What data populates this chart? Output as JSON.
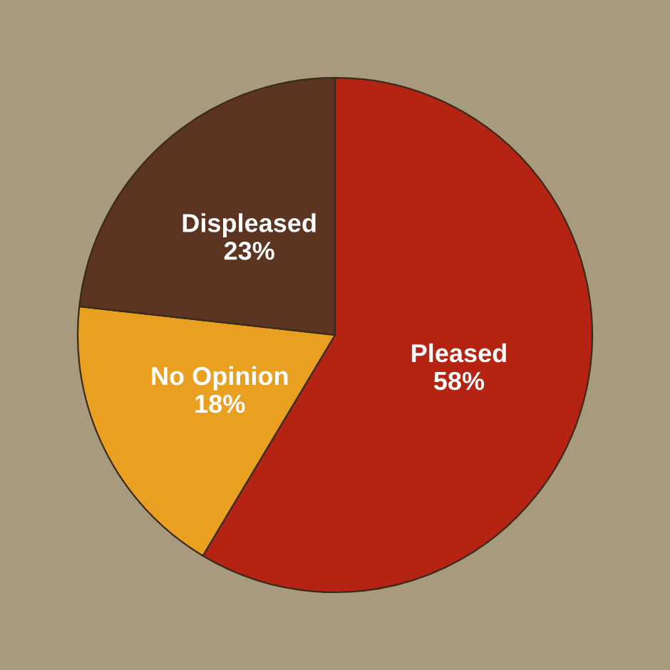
{
  "chart_data": {
    "type": "pie",
    "categories": [
      "Pleased",
      "No Opinion",
      "Displeased"
    ],
    "values": [
      58,
      18,
      23
    ],
    "value_labels": [
      "58%",
      "18%",
      "23%"
    ],
    "colors": [
      "#b52312",
      "#e9a020",
      "#5b3422"
    ],
    "legend": false
  }
}
